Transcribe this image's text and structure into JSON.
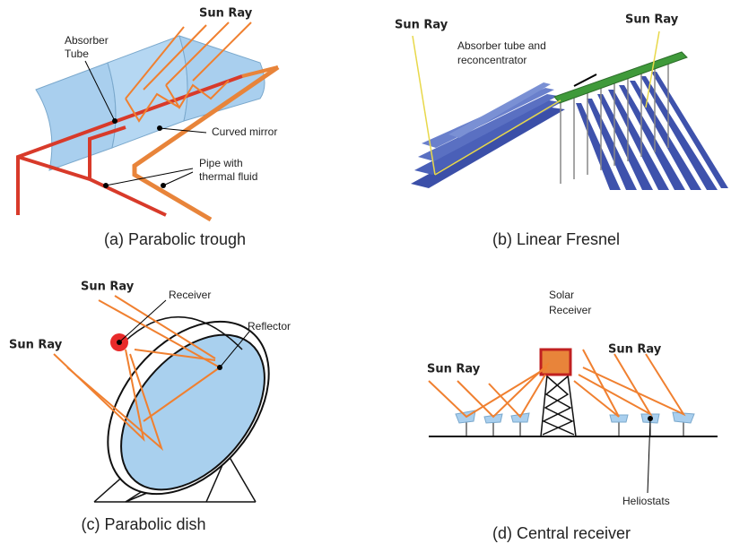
{
  "panels": [
    {
      "caption": "(a) Parabolic trough",
      "labels": {
        "sun_ray": "Sun Ray",
        "absorber": {
          "lines": [
            "Absorber",
            "Tube"
          ]
        },
        "mirror": "Curved mirror",
        "pipe": {
          "lines": [
            "Pipe with",
            "thermal fluid"
          ]
        }
      }
    },
    {
      "caption": "(b) Linear Fresnel",
      "labels": {
        "sun_ray_left": "Sun Ray",
        "sun_ray_right": "Sun Ray",
        "absorber": {
          "lines": [
            "Absorber tube and",
            "reconcentrator"
          ]
        }
      }
    },
    {
      "caption": "(c) Parabolic dish",
      "labels": {
        "sun_ray_top": "Sun Ray",
        "sun_ray_left": "Sun Ray",
        "receiver": "Receiver",
        "reflector": "Reflector"
      }
    },
    {
      "caption": "(d) Central receiver",
      "labels": {
        "receiver": {
          "lines": [
            "Solar",
            "Receiver"
          ]
        },
        "sun_ray_left": "Sun Ray",
        "sun_ray_right": "Sun Ray",
        "heliostats": "Heliostats"
      }
    }
  ]
}
